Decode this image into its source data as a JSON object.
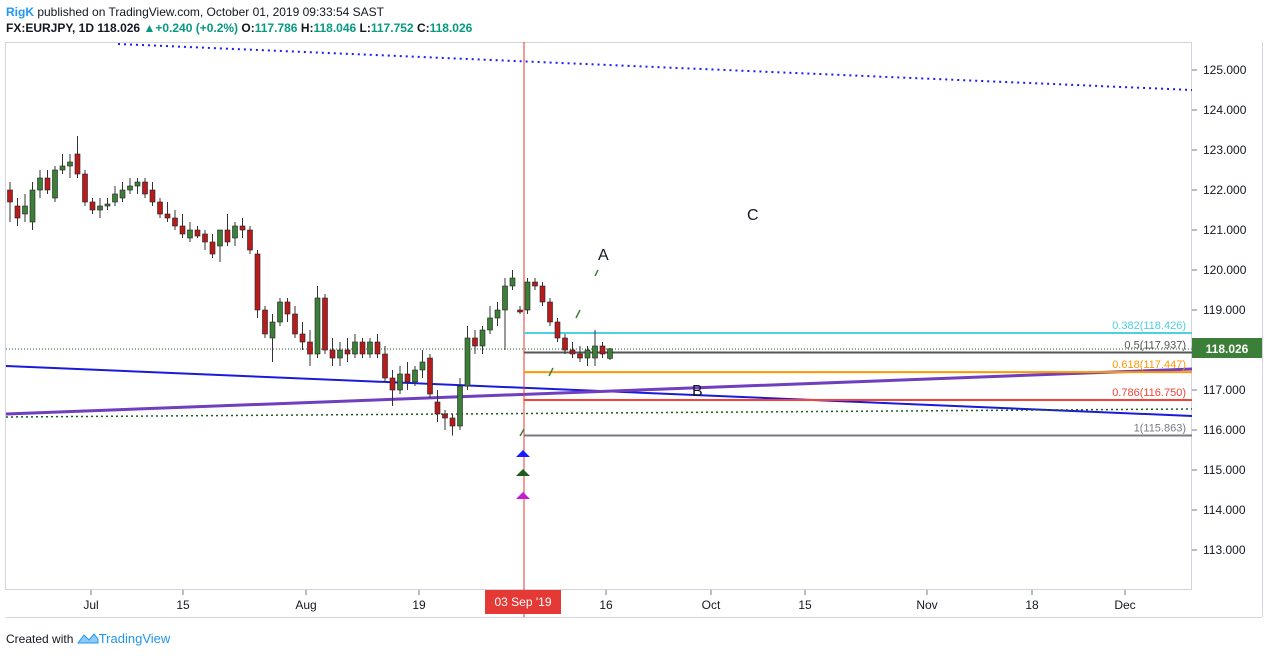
{
  "header": {
    "user": "RigK",
    "published_text": " published on TradingView.com, October 01, 2019 09:33:54 SAST",
    "symbol": "FX:EURJPY, 1D",
    "last": "118.026",
    "change": "+0.240 (+0.2%)",
    "o_label": "O:",
    "o_value": "117.786",
    "h_label": "H:",
    "h_value": "118.046",
    "l_label": "L:",
    "l_value": "117.752",
    "c_label": "C:",
    "c_value": "118.026"
  },
  "footer": {
    "created_with": "Created with",
    "brand": "TradingView"
  },
  "price_axis": {
    "ticks": [
      "125.000",
      "124.000",
      "123.000",
      "122.000",
      "121.000",
      "120.000",
      "119.000",
      "117.000",
      "116.000",
      "115.000",
      "114.000",
      "113.000"
    ],
    "tick_values": [
      125,
      124,
      123,
      122,
      121,
      120,
      119,
      117,
      116,
      115,
      114,
      113
    ],
    "current_price_label": "118.026",
    "current_price": 118.026
  },
  "time_axis": {
    "labels": [
      "Jul",
      "15",
      "Aug",
      "19",
      "16",
      "Oct",
      "15",
      "Nov",
      "18",
      "Dec"
    ],
    "highlight_label": "03 Sep '19"
  },
  "fib_levels": [
    {
      "label": "0.382(118.426)",
      "value": 118.426,
      "color": "#4dd0e1"
    },
    {
      "label": "0.5(117.937)",
      "value": 117.937,
      "color": "#555555"
    },
    {
      "label": "0.618(117.447)",
      "value": 117.447,
      "color": "#ff9800"
    },
    {
      "label": "0.786(116.750)",
      "value": 116.75,
      "color": "#f44336"
    },
    {
      "label": "1(115.863)",
      "value": 115.863,
      "color": "#787b86"
    }
  ],
  "wave_labels": [
    "A",
    "B",
    "C"
  ],
  "colors": {
    "bull": "#3c7f38",
    "bear": "#b71c1c",
    "accent": "#2196f3",
    "current_price_bg": "#3c7f38",
    "highlight_bg": "#e53935"
  },
  "chart_data": {
    "type": "candlestick",
    "symbol": "FX:EURJPY",
    "interval": "1D",
    "ylim": [
      112.2,
      125.8
    ],
    "candles": [
      {
        "date": "2019-06-24",
        "o": 122.0,
        "h": 122.2,
        "l": 121.2,
        "c": 121.7
      },
      {
        "date": "2019-06-25",
        "o": 121.6,
        "h": 121.8,
        "l": 121.1,
        "c": 121.3
      },
      {
        "date": "2019-06-26",
        "o": 121.4,
        "h": 121.9,
        "l": 121.2,
        "c": 121.6
      },
      {
        "date": "2019-06-27",
        "o": 121.2,
        "h": 122.2,
        "l": 121.0,
        "c": 122.0
      },
      {
        "date": "2019-06-28",
        "o": 122.0,
        "h": 122.5,
        "l": 121.8,
        "c": 122.3
      },
      {
        "date": "2019-07-01",
        "o": 122.3,
        "h": 122.5,
        "l": 121.9,
        "c": 122.0
      },
      {
        "date": "2019-07-02",
        "o": 121.8,
        "h": 122.6,
        "l": 121.7,
        "c": 122.5
      },
      {
        "date": "2019-07-03",
        "o": 122.5,
        "h": 122.9,
        "l": 122.4,
        "c": 122.6
      },
      {
        "date": "2019-07-04",
        "o": 122.6,
        "h": 122.9,
        "l": 122.3,
        "c": 122.7
      },
      {
        "date": "2019-07-05",
        "o": 122.9,
        "h": 123.35,
        "l": 122.3,
        "c": 122.4
      },
      {
        "date": "2019-07-08",
        "o": 122.4,
        "h": 122.5,
        "l": 121.6,
        "c": 121.7
      },
      {
        "date": "2019-07-09",
        "o": 121.7,
        "h": 121.8,
        "l": 121.4,
        "c": 121.5
      },
      {
        "date": "2019-07-10",
        "o": 121.5,
        "h": 121.8,
        "l": 121.3,
        "c": 121.6
      },
      {
        "date": "2019-07-11",
        "o": 121.6,
        "h": 121.8,
        "l": 121.5,
        "c": 121.65
      },
      {
        "date": "2019-07-12",
        "o": 121.7,
        "h": 122.1,
        "l": 121.6,
        "c": 121.9
      },
      {
        "date": "2019-07-15",
        "o": 121.8,
        "h": 122.2,
        "l": 121.7,
        "c": 122.0
      },
      {
        "date": "2019-07-16",
        "o": 122.0,
        "h": 122.3,
        "l": 121.9,
        "c": 122.1
      },
      {
        "date": "2019-07-17",
        "o": 122.1,
        "h": 122.3,
        "l": 121.9,
        "c": 122.2
      },
      {
        "date": "2019-07-18",
        "o": 122.2,
        "h": 122.3,
        "l": 121.8,
        "c": 121.9
      },
      {
        "date": "2019-07-19",
        "o": 122.0,
        "h": 122.2,
        "l": 121.6,
        "c": 121.7
      },
      {
        "date": "2019-07-22",
        "o": 121.7,
        "h": 121.8,
        "l": 121.3,
        "c": 121.4
      },
      {
        "date": "2019-07-23",
        "o": 121.4,
        "h": 121.7,
        "l": 121.2,
        "c": 121.3
      },
      {
        "date": "2019-07-24",
        "o": 121.3,
        "h": 121.5,
        "l": 121.0,
        "c": 121.1
      },
      {
        "date": "2019-07-25",
        "o": 121.1,
        "h": 121.4,
        "l": 120.8,
        "c": 120.9
      },
      {
        "date": "2019-07-26",
        "o": 120.8,
        "h": 121.2,
        "l": 120.7,
        "c": 121.0
      },
      {
        "date": "2019-07-29",
        "o": 121.0,
        "h": 121.1,
        "l": 120.8,
        "c": 120.85
      },
      {
        "date": "2019-07-30",
        "o": 120.9,
        "h": 121.0,
        "l": 120.5,
        "c": 120.7
      },
      {
        "date": "2019-07-31",
        "o": 120.7,
        "h": 120.9,
        "l": 120.3,
        "c": 120.4
      },
      {
        "date": "2019-08-01",
        "o": 120.6,
        "h": 121.0,
        "l": 120.2,
        "c": 121.0
      },
      {
        "date": "2019-08-02",
        "o": 121.0,
        "h": 121.4,
        "l": 120.6,
        "c": 120.7
      },
      {
        "date": "2019-08-05",
        "o": 120.8,
        "h": 121.2,
        "l": 120.6,
        "c": 121.1
      },
      {
        "date": "2019-08-06",
        "o": 121.1,
        "h": 121.3,
        "l": 120.8,
        "c": 121.0
      },
      {
        "date": "2019-08-07",
        "o": 121.0,
        "h": 121.1,
        "l": 120.4,
        "c": 120.5
      },
      {
        "date": "2019-08-08",
        "o": 120.4,
        "h": 120.5,
        "l": 118.8,
        "c": 119.0
      },
      {
        "date": "2019-08-09",
        "o": 119.0,
        "h": 119.1,
        "l": 118.3,
        "c": 118.4
      },
      {
        "date": "2019-08-12",
        "o": 118.3,
        "h": 118.9,
        "l": 117.7,
        "c": 118.7
      },
      {
        "date": "2019-08-13",
        "o": 118.7,
        "h": 119.3,
        "l": 118.6,
        "c": 119.2
      },
      {
        "date": "2019-08-14",
        "o": 119.2,
        "h": 119.3,
        "l": 118.7,
        "c": 118.9
      },
      {
        "date": "2019-08-15",
        "o": 118.9,
        "h": 119.1,
        "l": 118.3,
        "c": 118.4
      },
      {
        "date": "2019-08-16",
        "o": 118.4,
        "h": 118.7,
        "l": 118.0,
        "c": 118.2
      },
      {
        "date": "2019-08-19",
        "o": 118.2,
        "h": 118.5,
        "l": 117.6,
        "c": 117.9
      },
      {
        "date": "2019-08-20",
        "o": 117.9,
        "h": 119.6,
        "l": 117.8,
        "c": 119.3
      },
      {
        "date": "2019-08-21",
        "o": 119.3,
        "h": 119.4,
        "l": 117.9,
        "c": 118.0
      },
      {
        "date": "2019-08-22",
        "o": 118.0,
        "h": 118.3,
        "l": 117.6,
        "c": 117.8
      },
      {
        "date": "2019-08-23",
        "o": 117.8,
        "h": 118.2,
        "l": 117.6,
        "c": 118.0
      },
      {
        "date": "2019-08-26",
        "o": 118.0,
        "h": 118.3,
        "l": 117.7,
        "c": 117.9
      },
      {
        "date": "2019-08-27",
        "o": 117.9,
        "h": 118.4,
        "l": 117.8,
        "c": 118.2
      },
      {
        "date": "2019-08-28",
        "o": 118.2,
        "h": 118.3,
        "l": 117.8,
        "c": 117.9
      },
      {
        "date": "2019-08-29",
        "o": 117.9,
        "h": 118.3,
        "l": 117.8,
        "c": 118.2
      },
      {
        "date": "2019-08-30",
        "o": 118.2,
        "h": 118.4,
        "l": 117.8,
        "c": 117.9
      },
      {
        "date": "2019-09-02",
        "o": 117.9,
        "h": 118.1,
        "l": 117.2,
        "c": 117.3
      },
      {
        "date": "2019-09-03",
        "o": 117.3,
        "h": 117.5,
        "l": 116.6,
        "c": 117.0
      },
      {
        "date": "2019-09-04",
        "o": 117.0,
        "h": 117.6,
        "l": 116.9,
        "c": 117.4
      },
      {
        "date": "2019-09-05",
        "o": 117.4,
        "h": 117.7,
        "l": 117.0,
        "c": 117.2
      },
      {
        "date": "2019-09-06",
        "o": 117.2,
        "h": 117.6,
        "l": 117.1,
        "c": 117.5
      },
      {
        "date": "2019-09-09",
        "o": 117.5,
        "h": 118.0,
        "l": 117.3,
        "c": 117.7
      },
      {
        "date": "2019-09-10",
        "o": 117.8,
        "h": 117.9,
        "l": 116.8,
        "c": 116.9
      },
      {
        "date": "2019-09-11",
        "o": 116.7,
        "h": 117.0,
        "l": 116.2,
        "c": 116.4
      },
      {
        "date": "2019-09-12",
        "o": 116.4,
        "h": 116.5,
        "l": 116.0,
        "c": 116.3
      },
      {
        "date": "2019-09-13",
        "o": 116.3,
        "h": 116.4,
        "l": 115.86,
        "c": 116.1
      },
      {
        "date": "2019-09-16",
        "o": 116.1,
        "h": 117.3,
        "l": 116.0,
        "c": 117.1
      },
      {
        "date": "2019-09-17",
        "o": 117.1,
        "h": 118.6,
        "l": 117.0,
        "c": 118.3
      },
      {
        "date": "2019-09-18",
        "o": 118.3,
        "h": 118.5,
        "l": 117.9,
        "c": 118.1
      },
      {
        "date": "2019-09-19",
        "o": 118.1,
        "h": 118.6,
        "l": 117.9,
        "c": 118.5
      },
      {
        "date": "2019-09-20",
        "o": 118.5,
        "h": 119.1,
        "l": 118.4,
        "c": 118.8
      },
      {
        "date": "2019-09-23",
        "o": 118.8,
        "h": 119.2,
        "l": 118.6,
        "c": 119.0
      },
      {
        "date": "2019-09-24",
        "o": 119.0,
        "h": 119.8,
        "l": 118.0,
        "c": 119.6
      },
      {
        "date": "2019-09-25",
        "o": 119.6,
        "h": 120.0,
        "l": 119.5,
        "c": 119.8
      },
      {
        "date": "2019-09-26",
        "o": 119.0,
        "h": 119.1,
        "l": 118.9,
        "c": 118.95
      },
      {
        "date": "2019-09-27",
        "o": 119.0,
        "h": 119.8,
        "l": 118.9,
        "c": 119.7
      },
      {
        "date": "2019-09-30",
        "o": 119.7,
        "h": 119.8,
        "l": 119.5,
        "c": 119.6
      },
      {
        "date": "2019-10-01",
        "o": 119.6,
        "h": 119.7,
        "l": 119.1,
        "c": 119.2
      },
      {
        "date": "2019-10-02",
        "o": 119.2,
        "h": 119.3,
        "l": 118.6,
        "c": 118.7
      },
      {
        "date": "2019-10-03",
        "o": 118.7,
        "h": 118.8,
        "l": 118.2,
        "c": 118.3
      },
      {
        "date": "2019-10-04",
        "o": 118.3,
        "h": 118.4,
        "l": 117.9,
        "c": 118.0
      },
      {
        "date": "2019-10-07",
        "o": 118.0,
        "h": 118.2,
        "l": 117.8,
        "c": 117.9
      },
      {
        "date": "2019-10-08",
        "o": 117.9,
        "h": 118.1,
        "l": 117.7,
        "c": 117.8
      },
      {
        "date": "2019-10-09",
        "o": 117.8,
        "h": 118.1,
        "l": 117.6,
        "c": 118.0
      },
      {
        "date": "2019-10-10",
        "o": 117.8,
        "h": 118.5,
        "l": 117.6,
        "c": 118.1
      },
      {
        "date": "2019-10-11",
        "o": 118.1,
        "h": 118.2,
        "l": 117.8,
        "c": 117.9
      },
      {
        "date": "2019-10-14",
        "o": 117.79,
        "h": 118.05,
        "l": 117.75,
        "c": 118.03
      }
    ]
  }
}
